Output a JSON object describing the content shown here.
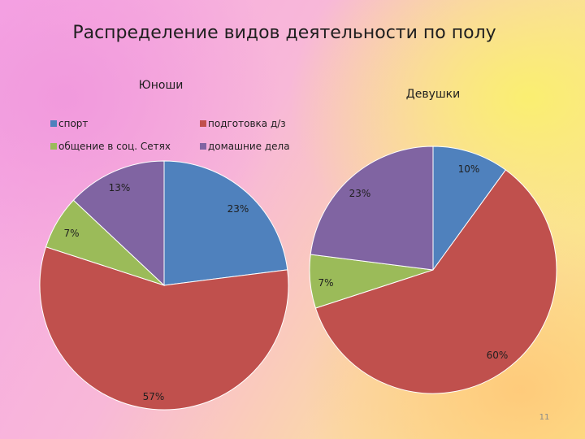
{
  "slide": {
    "title": "Распределение  видов деятельности по полу",
    "page_number": "11"
  },
  "chart_data": [
    {
      "type": "pie",
      "title": "Юноши",
      "categories": [
        "спорт",
        "подготовка д/з",
        "общение в соц. Сетях",
        "домашние дела"
      ],
      "values": [
        23,
        57,
        7,
        13
      ],
      "labels": [
        "23%",
        "57%",
        "7%",
        "13%"
      ],
      "colors": [
        "#4f81bd",
        "#c0504d",
        "#9bbb59",
        "#8064a2"
      ],
      "legend": "top"
    },
    {
      "type": "pie",
      "title": "Девушки",
      "categories": [
        "спорт",
        "подготовка д/з",
        "общение в соц. Сетях",
        "домашние дела"
      ],
      "values": [
        10,
        60,
        7,
        23
      ],
      "labels": [
        "10%",
        "60%",
        "7%",
        "23%"
      ],
      "colors": [
        "#4f81bd",
        "#c0504d",
        "#9bbb59",
        "#8064a2"
      ],
      "legend": "top"
    }
  ]
}
